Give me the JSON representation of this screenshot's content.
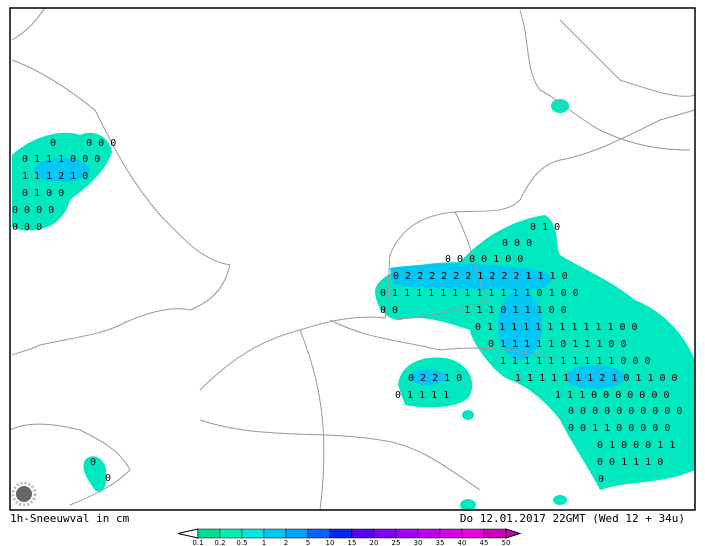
{
  "map": {
    "title": "1h-Sneeuwval in cm",
    "valid": "Do 12.01.2017 22GMT (Wed 12 + 34u)",
    "legend": {
      "levels": [
        "0.1",
        "0.2",
        "0.5",
        "1",
        "2",
        "5",
        "10",
        "15",
        "20",
        "25",
        "30",
        "35",
        "40",
        "45",
        "50"
      ],
      "colors": [
        "#00e08c",
        "#00f0b0",
        "#00e8e0",
        "#00c8f4",
        "#00a0ff",
        "#0064ff",
        "#0028f0",
        "#5a00f0",
        "#8200f0",
        "#a000f0",
        "#be00f0",
        "#d200e6",
        "#e600dc",
        "#c800b4"
      ]
    },
    "labels": [
      "0     0 0 0",
      "0 1 1 1 0 0 0",
      "1 1 1 2 1 0",
      "0 1 0 0",
      "0 0 0 0",
      "0 0 0",
      "0 1 0",
      "0 0 0",
      "0 0 0 0 1 0 0",
      "0 2 2 2 2 2 2 1 2 2 2 1 1 1 0",
      "0 1 1 1 1 1 1 1 1 1 1 1 1 0 1 0 0",
      "0 0           1 1 1 0 1 1 1 0 0",
      "0 1 1 1 1 1 1 1 1 1 1 1 0 0",
      "0 1 1 1 1 1 0 1 1 1 0 0",
      "1 1 1 1 1 1 1 1 1 1 0 0 0",
      "0 2 2 1 0",
      "1 1 1 1 1 1 1 2 1 0 1 1 0 0",
      "0 1 1 1 1",
      "1 1 1 0 0 0 0 0 0 0",
      "0 0 0 0 0 0 0 0 0 0",
      "0 0 1 1 0 0 0 0 0",
      "0 1 0 0 0 1 1",
      "0 0 1 1 1 0",
      "0",
      "0",
      "0"
    ]
  }
}
